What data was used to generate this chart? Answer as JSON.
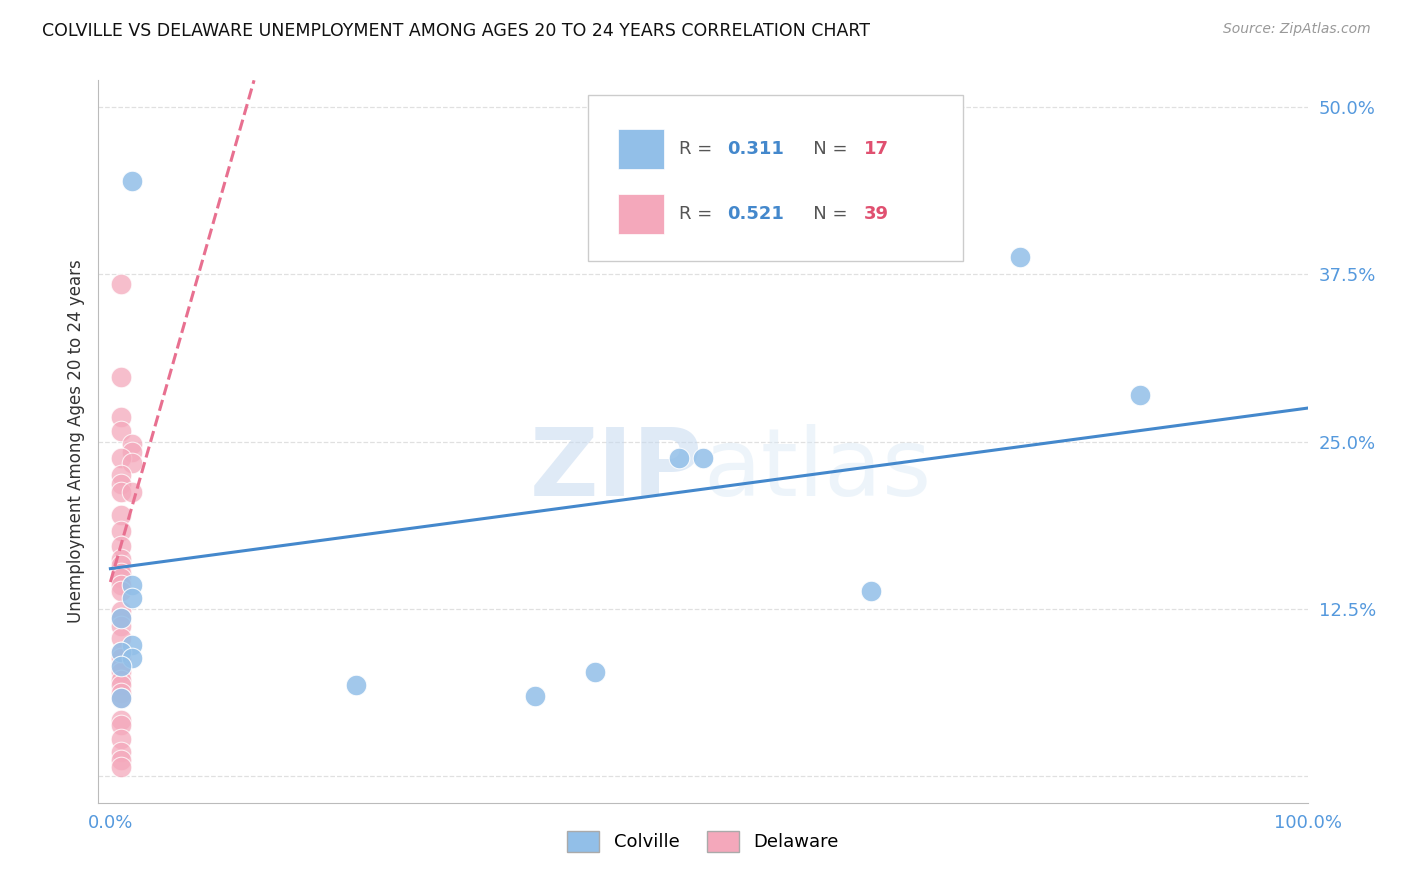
{
  "title": "COLVILLE VS DELAWARE UNEMPLOYMENT AMONG AGES 20 TO 24 YEARS CORRELATION CHART",
  "source": "Source: ZipAtlas.com",
  "ylabel": "Unemployment Among Ages 20 to 24 years",
  "xlim": [
    -0.01,
    1.0
  ],
  "ylim": [
    -0.02,
    0.52
  ],
  "colville_color": "#92bfe8",
  "delaware_color": "#f4a8bb",
  "colville_line_color": "#4488cc",
  "delaware_line_color": "#e87090",
  "colville_R": "0.311",
  "colville_N": "17",
  "delaware_R": "0.521",
  "delaware_N": "39",
  "colville_points": [
    [
      0.018,
      0.445
    ],
    [
      0.76,
      0.388
    ],
    [
      0.86,
      0.285
    ],
    [
      0.475,
      0.238
    ],
    [
      0.495,
      0.238
    ],
    [
      0.635,
      0.138
    ],
    [
      0.018,
      0.143
    ],
    [
      0.018,
      0.133
    ],
    [
      0.009,
      0.118
    ],
    [
      0.018,
      0.098
    ],
    [
      0.009,
      0.093
    ],
    [
      0.018,
      0.088
    ],
    [
      0.009,
      0.082
    ],
    [
      0.205,
      0.068
    ],
    [
      0.355,
      0.06
    ],
    [
      0.405,
      0.078
    ],
    [
      0.009,
      0.058
    ]
  ],
  "delaware_points": [
    [
      0.009,
      0.368
    ],
    [
      0.009,
      0.298
    ],
    [
      0.009,
      0.268
    ],
    [
      0.009,
      0.258
    ],
    [
      0.018,
      0.248
    ],
    [
      0.018,
      0.242
    ],
    [
      0.009,
      0.238
    ],
    [
      0.018,
      0.234
    ],
    [
      0.009,
      0.225
    ],
    [
      0.009,
      0.218
    ],
    [
      0.009,
      0.212
    ],
    [
      0.018,
      0.212
    ],
    [
      0.009,
      0.195
    ],
    [
      0.009,
      0.183
    ],
    [
      0.009,
      0.172
    ],
    [
      0.009,
      0.162
    ],
    [
      0.009,
      0.158
    ],
    [
      0.009,
      0.152
    ],
    [
      0.009,
      0.148
    ],
    [
      0.009,
      0.143
    ],
    [
      0.009,
      0.138
    ],
    [
      0.009,
      0.123
    ],
    [
      0.009,
      0.118
    ],
    [
      0.009,
      0.112
    ],
    [
      0.009,
      0.103
    ],
    [
      0.009,
      0.093
    ],
    [
      0.009,
      0.088
    ],
    [
      0.009,
      0.082
    ],
    [
      0.009,
      0.078
    ],
    [
      0.009,
      0.072
    ],
    [
      0.009,
      0.068
    ],
    [
      0.009,
      0.062
    ],
    [
      0.009,
      0.058
    ],
    [
      0.009,
      0.042
    ],
    [
      0.009,
      0.038
    ],
    [
      0.009,
      0.028
    ],
    [
      0.009,
      0.018
    ],
    [
      0.009,
      0.012
    ],
    [
      0.009,
      0.007
    ]
  ],
  "watermark_zip": "ZIP",
  "watermark_atlas": "atlas",
  "background_color": "#ffffff",
  "grid_color": "#e0e0e0"
}
